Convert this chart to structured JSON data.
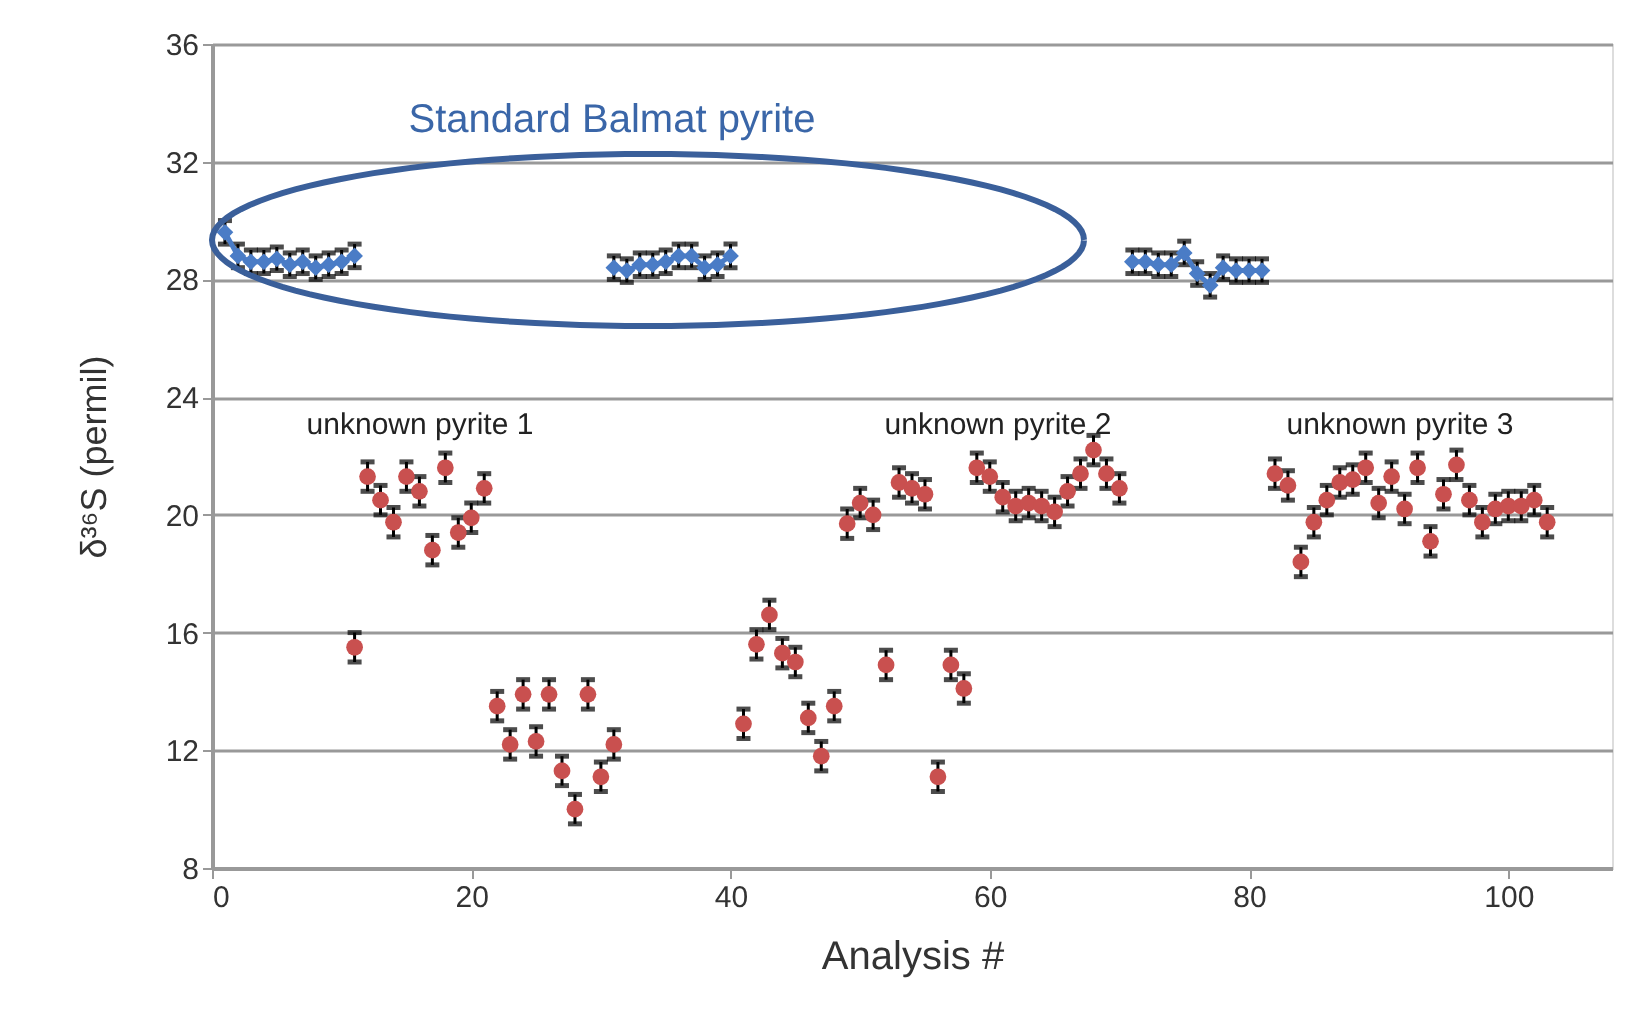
{
  "chart_data": {
    "type": "scatter",
    "xlabel": "Analysis #",
    "ylabel": "δ³⁶S (permil)",
    "xlim": [
      0,
      108
    ],
    "xticks": [
      0,
      20,
      40,
      60,
      80,
      100
    ],
    "ylim": [
      8,
      36
    ],
    "yticks": [
      8,
      12,
      16,
      20,
      24,
      28,
      32,
      36
    ],
    "grid": "y",
    "series": [
      {
        "type": "line",
        "marker": "diamond",
        "color": "#4a7cc6",
        "x": [
          1,
          2,
          3,
          4,
          5,
          6,
          7,
          8,
          9,
          10,
          11,
          21,
          31,
          32,
          33,
          34,
          35,
          36,
          37,
          38,
          39,
          40,
          61,
          71,
          72,
          73,
          74,
          75,
          76,
          77,
          78,
          79,
          80,
          81
        ],
        "values": [
          29.6,
          28.8,
          28.6,
          28.6,
          28.7,
          28.5,
          28.6,
          28.4,
          28.5,
          28.6,
          28.8,
          null,
          28.4,
          28.3,
          28.5,
          28.5,
          28.6,
          28.8,
          28.8,
          28.4,
          28.5,
          28.8,
          null,
          28.6,
          28.6,
          28.5,
          28.5,
          28.9,
          28.2,
          27.8,
          28.4,
          28.3,
          28.3,
          28.3
        ],
        "errors": [
          0.4,
          0.4,
          0.4,
          0.4,
          0.4,
          0.4,
          0.4,
          0.4,
          0.4,
          0.4,
          0.4,
          null,
          0.4,
          0.4,
          0.4,
          0.4,
          0.4,
          0.4,
          0.4,
          0.4,
          0.4,
          0.4,
          null,
          0.4,
          0.4,
          0.4,
          0.4,
          0.4,
          0.4,
          0.4,
          0.4,
          0.4,
          0.4,
          0.4
        ]
      },
      {
        "marker": "circle",
        "color": "#c9504f",
        "x": [
          11,
          12,
          13,
          14,
          15,
          16,
          17,
          18,
          19,
          20,
          21,
          22,
          23,
          24,
          25,
          26,
          27,
          28,
          29,
          30,
          31,
          41,
          42,
          43,
          44,
          45,
          46,
          47,
          48,
          49,
          50,
          51,
          52,
          53,
          54,
          55,
          56,
          57,
          58,
          59,
          60,
          61,
          62,
          63,
          64,
          65,
          66,
          67,
          68,
          69,
          70,
          82,
          83,
          84,
          85,
          86,
          87,
          88,
          89,
          90,
          91,
          92,
          93,
          94,
          95,
          96,
          97,
          98,
          99,
          100,
          101,
          102,
          103
        ],
        "values": [
          15.5,
          21.3,
          20.5,
          19.75,
          21.3,
          20.8,
          18.8,
          21.6,
          19.4,
          19.9,
          20.9,
          13.5,
          12.2,
          13.9,
          12.3,
          13.9,
          11.3,
          10.0,
          13.9,
          11.1,
          12.2,
          12.9,
          15.6,
          16.6,
          15.3,
          15.0,
          13.1,
          11.8,
          13.5,
          19.7,
          20.4,
          20.0,
          14.9,
          21.1,
          20.9,
          20.7,
          11.1,
          14.9,
          14.1,
          21.6,
          21.3,
          20.6,
          20.3,
          20.4,
          20.3,
          20.1,
          20.8,
          21.4,
          22.2,
          21.4,
          20.9,
          21.4,
          21.0,
          18.4,
          19.75,
          20.5,
          21.1,
          21.2,
          21.6,
          20.4,
          21.3,
          20.2,
          21.6,
          19.1,
          20.7,
          21.7,
          20.5,
          19.75,
          20.2,
          20.3,
          20.3,
          20.5,
          19.75
        ],
        "errors": [
          0.5,
          0.5,
          0.5,
          0.5,
          0.5,
          0.5,
          0.5,
          0.5,
          0.5,
          0.5,
          0.5,
          0.5,
          0.5,
          0.5,
          0.5,
          0.5,
          0.5,
          0.5,
          0.5,
          0.5,
          0.5,
          0.5,
          0.5,
          0.5,
          0.5,
          0.5,
          0.5,
          0.5,
          0.5,
          0.5,
          0.5,
          0.5,
          0.5,
          0.5,
          0.5,
          0.5,
          0.5,
          0.5,
          0.5,
          0.5,
          0.5,
          0.5,
          0.5,
          0.5,
          0.5,
          0.5,
          0.5,
          0.5,
          0.5,
          0.5,
          0.5,
          0.5,
          0.5,
          0.5,
          0.5,
          0.5,
          0.5,
          0.5,
          0.5,
          0.5,
          0.5,
          0.5,
          0.5,
          0.5,
          0.5,
          0.5,
          0.5,
          0.5,
          0.5,
          0.5,
          0.5,
          0.5,
          0.5
        ]
      }
    ],
    "annotations": [
      "Standard Balmat pyrite",
      "unknown pyrite 1",
      "unknown pyrite 2",
      "unknown pyrite 3"
    ]
  }
}
